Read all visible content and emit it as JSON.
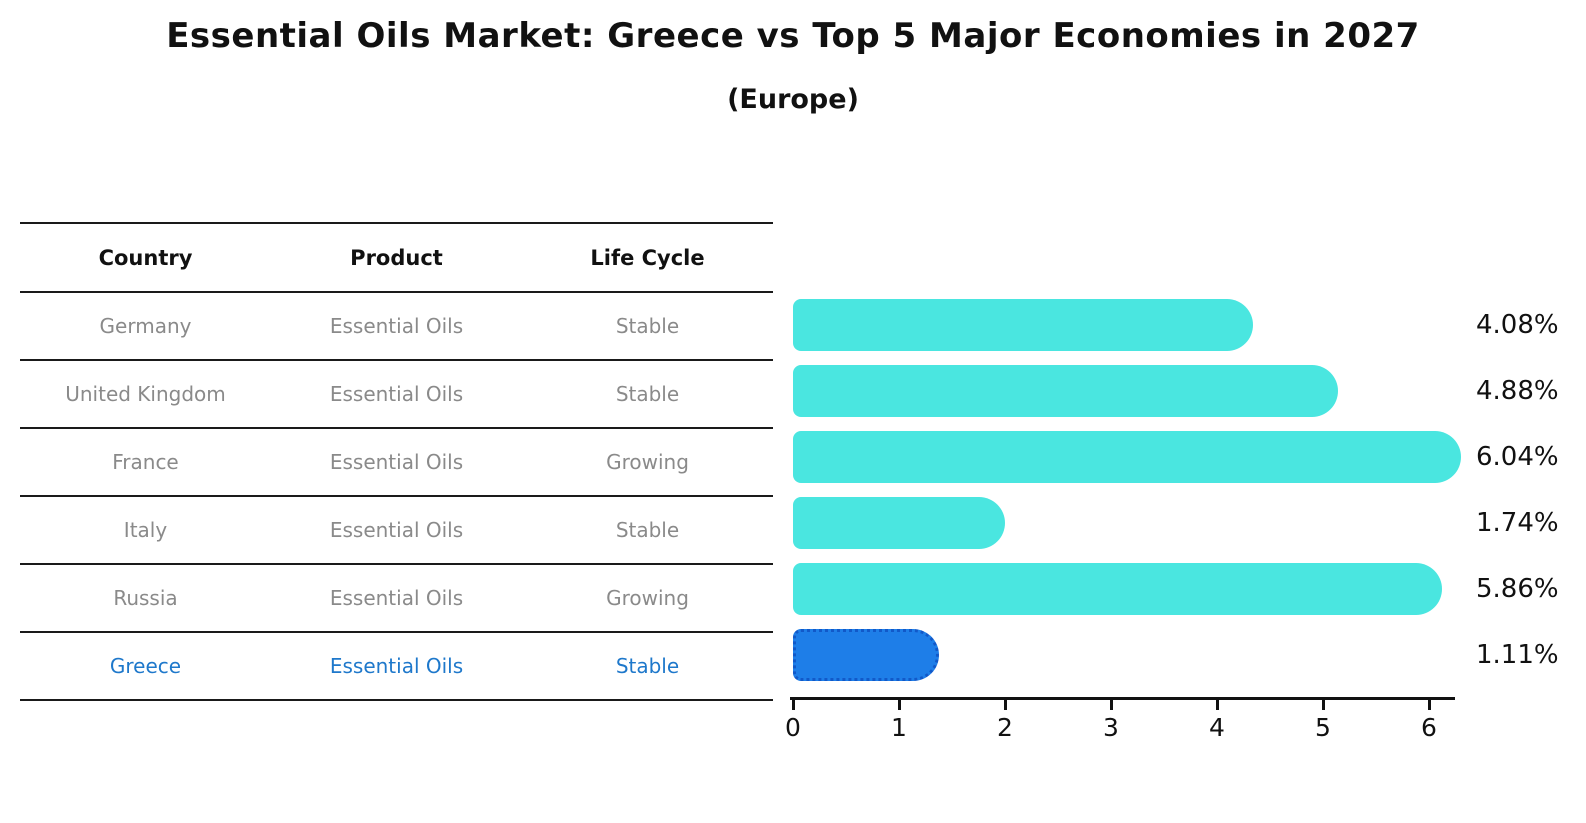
{
  "title": "Essential Oils Market: Greece vs Top 5 Major Economies in 2027",
  "subtitle": "(Europe)",
  "table": {
    "headers": [
      "Country",
      "Product",
      "Life Cycle"
    ],
    "rows": [
      {
        "country": "Germany",
        "product": "Essential Oils",
        "life_cycle": "Stable",
        "highlight": false
      },
      {
        "country": "United Kingdom",
        "product": "Essential Oils",
        "life_cycle": "Stable",
        "highlight": false
      },
      {
        "country": "France",
        "product": "Essential Oils",
        "life_cycle": "Growing",
        "highlight": false
      },
      {
        "country": "Italy",
        "product": "Essential Oils",
        "life_cycle": "Stable",
        "highlight": false
      },
      {
        "country": "Russia",
        "product": "Essential Oils",
        "life_cycle": "Growing",
        "highlight": false
      },
      {
        "country": "Greece",
        "product": "Essential Oils",
        "life_cycle": "Stable",
        "highlight": true
      }
    ]
  },
  "chart_data": {
    "type": "bar",
    "orientation": "horizontal",
    "title": "Essential Oils Market: Greece vs Top 5 Major Economies in 2027",
    "subtitle": "(Europe)",
    "categories": [
      "Germany",
      "United Kingdom",
      "France",
      "Italy",
      "Russia",
      "Greece"
    ],
    "values": [
      4.08,
      4.88,
      6.04,
      1.74,
      5.86,
      1.11
    ],
    "value_labels": [
      "4.08%",
      "4.88%",
      "6.04%",
      "1.74%",
      "5.86%",
      "1.11%"
    ],
    "x_ticks": [
      "0",
      "1",
      "2",
      "3",
      "4",
      "5",
      "6"
    ],
    "xlim": [
      0,
      6.3
    ],
    "grid": false,
    "legend": "none",
    "highlight_index": 5,
    "colors": {
      "bar": "#4ae6e0",
      "highlight_bar": "#1e7ee8",
      "highlight_border": "#1159c9",
      "highlight_text": "#1e78cb",
      "row_text": "#8a8a8a",
      "axis": "#111111"
    }
  }
}
